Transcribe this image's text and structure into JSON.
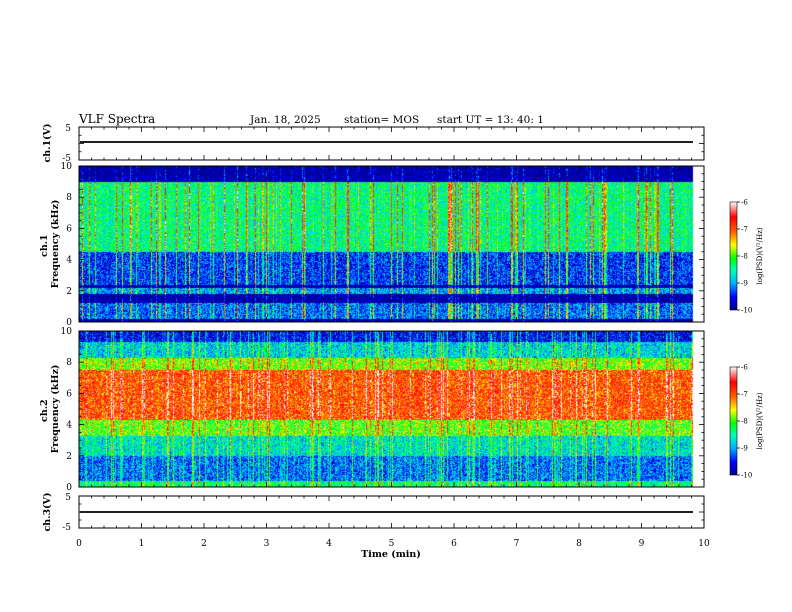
{
  "header": {
    "title": "VLF Spectra",
    "date": "Jan. 18, 2025",
    "station": "station= MOS",
    "start_ut": "start  UT =   13: 40: 1"
  },
  "chart_data": [
    {
      "type": "line",
      "ylabel": "ch.1(V)",
      "xlim": [
        0,
        10
      ],
      "ylim": [
        -5,
        5
      ],
      "yticks": [
        "5",
        "-5"
      ],
      "series": [
        {
          "values_constant": 0
        }
      ]
    },
    {
      "type": "heatmap",
      "ylabel": "ch.1\nFrequency (kHz)",
      "xlim": [
        0,
        10
      ],
      "ylim": [
        0,
        10
      ],
      "yticks": [
        "0",
        "2",
        "4",
        "6",
        "8",
        "10"
      ],
      "colorbar": {
        "label": "log(PSD)(V²/Hz)",
        "range": [
          -10,
          -6
        ],
        "ticks": [
          "-6",
          "-7",
          "-8",
          "-9",
          "-10"
        ]
      },
      "data_end_min": 9.83,
      "bands": [
        {
          "freq_khz": [
            9.1,
            10.0
          ],
          "level": -10.0
        },
        {
          "freq_khz": [
            4.5,
            9.0
          ],
          "level": -8.4
        },
        {
          "freq_khz": [
            2.4,
            4.5
          ],
          "level": -9.4
        },
        {
          "freq_khz": [
            1.8,
            2.2
          ],
          "level": -9.0
        },
        {
          "freq_khz": [
            1.3,
            1.7
          ],
          "level": -10.0
        },
        {
          "freq_khz": [
            0.2,
            1.2
          ],
          "level": -9.2
        },
        {
          "freq_khz": [
            0.0,
            0.2
          ],
          "level": -10.0
        }
      ]
    },
    {
      "type": "heatmap",
      "ylabel": "ch.2\nFrequency (kHz)",
      "xlim": [
        0,
        10
      ],
      "ylim": [
        0,
        10
      ],
      "yticks": [
        "0",
        "2",
        "4",
        "6",
        "8",
        "10"
      ],
      "colorbar": {
        "label": "log(PSD)(V²/Hz)",
        "range": [
          -10,
          -6
        ],
        "ticks": [
          "-6",
          "-7",
          "-8",
          "-9",
          "-10"
        ]
      },
      "data_end_min": 9.83,
      "bands": [
        {
          "freq_khz": [
            9.3,
            10.0
          ],
          "level": -9.6
        },
        {
          "freq_khz": [
            8.3,
            9.3
          ],
          "level": -8.8
        },
        {
          "freq_khz": [
            7.5,
            8.3
          ],
          "level": -7.9
        },
        {
          "freq_khz": [
            4.3,
            7.5
          ],
          "level": -7.0
        },
        {
          "freq_khz": [
            3.3,
            4.3
          ],
          "level": -8.0
        },
        {
          "freq_khz": [
            2.0,
            3.3
          ],
          "level": -8.7
        },
        {
          "freq_khz": [
            0.4,
            2.0
          ],
          "level": -9.2
        },
        {
          "freq_khz": [
            0.0,
            0.4
          ],
          "level": -8.4
        }
      ]
    },
    {
      "type": "line",
      "ylabel": "ch.3(V)",
      "xlabel": "Time (min)",
      "xlim": [
        0,
        10
      ],
      "ylim": [
        -5,
        5
      ],
      "yticks": [
        "5",
        "-5"
      ],
      "xticks": [
        "0",
        "1",
        "2",
        "3",
        "4",
        "5",
        "6",
        "7",
        "8",
        "9",
        "10"
      ],
      "series": [
        {
          "values_constant": 0
        }
      ]
    }
  ],
  "colors": {
    "colormap": [
      "#00008c",
      "#0000ff",
      "#00b4ff",
      "#00ffb4",
      "#00ff00",
      "#ffff00",
      "#ff6400",
      "#ff0000",
      "#ffffff"
    ]
  }
}
